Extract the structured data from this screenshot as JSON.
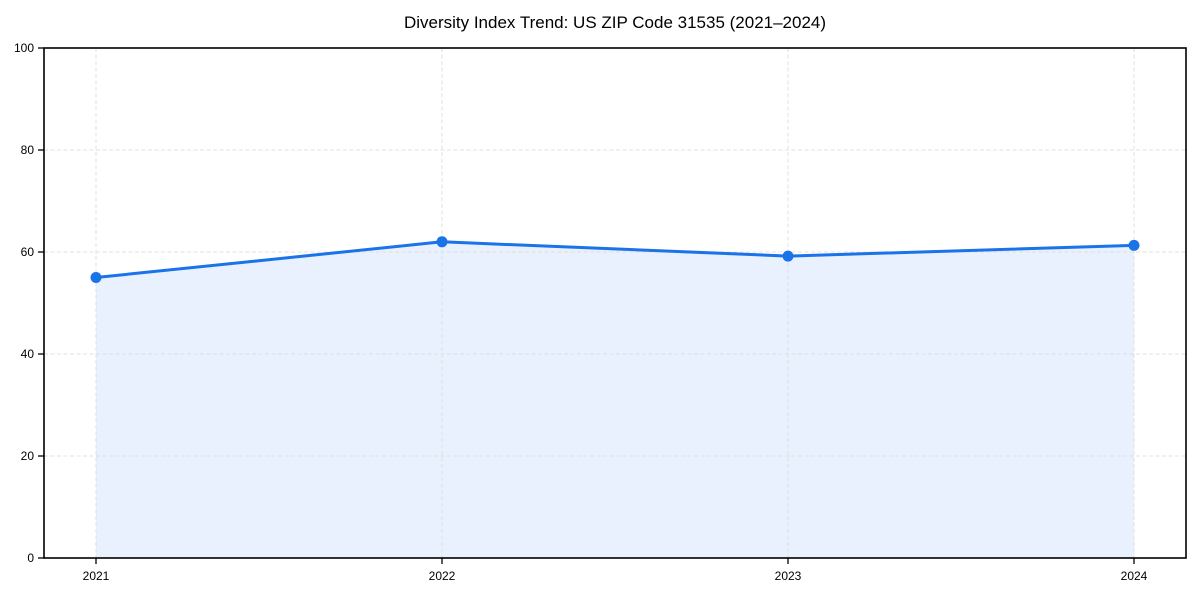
{
  "chart_data": {
    "type": "area",
    "title": "Diversity Index Trend: US ZIP Code 31535 (2021–2024)",
    "categories": [
      "2021",
      "2022",
      "2023",
      "2024"
    ],
    "series": [
      {
        "name": "Diversity Index",
        "values": [
          55.0,
          62.0,
          59.2,
          61.3
        ]
      }
    ],
    "xlabel": "",
    "ylabel": "",
    "ylim": [
      0,
      100
    ],
    "yticks": [
      0,
      20,
      40,
      60,
      80,
      100
    ],
    "grid": "dashed, both axes",
    "legend": "none",
    "line_color": "#1a73e8",
    "fill_opacity": 0.1,
    "grid_color": "#e0e0e0",
    "spine_color": "#000000",
    "tick_label_color": "#000000",
    "tick_font_size": 12,
    "title_font_size": 17
  }
}
